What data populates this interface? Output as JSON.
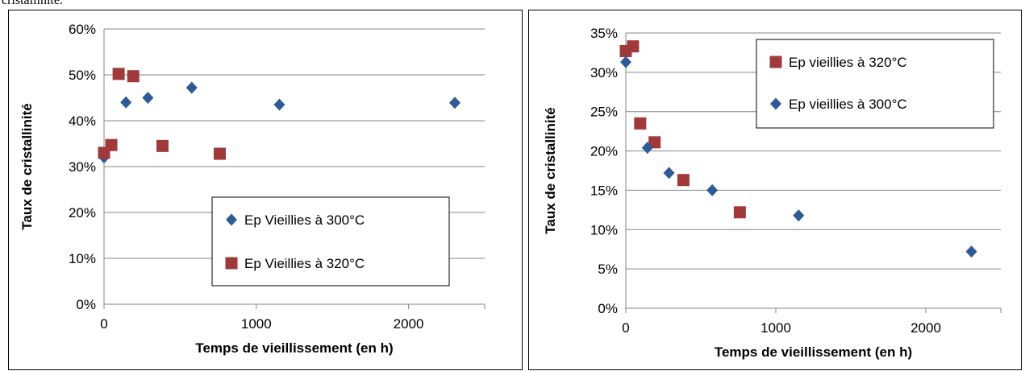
{
  "caption_fragment": "cristallinité.",
  "colors": {
    "blue": "#2E5A95",
    "red": "#A0393A"
  },
  "chart_data": [
    {
      "type": "scatter",
      "xlabel": "Temps de vieillissement (en h)",
      "ylabel": "Taux de cristallinité",
      "xlim": [
        0,
        2500
      ],
      "ylim": [
        0,
        0.6
      ],
      "xticks": [
        0,
        1000,
        2000
      ],
      "yticks": [
        0,
        0.1,
        0.2,
        0.3,
        0.4,
        0.5,
        0.6
      ],
      "xtick_labels": [
        "0",
        "1000",
        "2000"
      ],
      "ytick_labels": [
        "0%",
        "10%",
        "20%",
        "30%",
        "40%",
        "50%",
        "60%"
      ],
      "grid": "horizontal",
      "legend_position": "lower-right",
      "series": [
        {
          "name": "Ep Vieillies à 300°C",
          "marker": "diamond",
          "color": "#2E5A95",
          "x": [
            0,
            144,
            288,
            576,
            1152,
            2304
          ],
          "y": [
            0.32,
            0.44,
            0.45,
            0.472,
            0.435,
            0.439
          ]
        },
        {
          "name": "Ep Vieillies à 320°C",
          "marker": "square",
          "color": "#A0393A",
          "x": [
            0,
            48,
            96,
            192,
            384,
            760
          ],
          "y": [
            0.33,
            0.347,
            0.502,
            0.497,
            0.345,
            0.328
          ]
        }
      ]
    },
    {
      "type": "scatter",
      "xlabel": "Temps de vieillissement (en h)",
      "ylabel": "Taux de cristallinité",
      "xlim": [
        0,
        2500
      ],
      "ylim": [
        0,
        0.35
      ],
      "xticks": [
        0,
        1000,
        2000
      ],
      "yticks": [
        0,
        0.05,
        0.1,
        0.15,
        0.2,
        0.25,
        0.3,
        0.35
      ],
      "xtick_labels": [
        "0",
        "1000",
        "2000"
      ],
      "ytick_labels": [
        "0%",
        "5%",
        "10%",
        "15%",
        "20%",
        "25%",
        "30%",
        "35%"
      ],
      "grid": "horizontal",
      "legend_position": "top-right",
      "series": [
        {
          "name": "Ep vieillies à 320°C",
          "marker": "square",
          "color": "#A0393A",
          "x": [
            0,
            48,
            96,
            192,
            384,
            760
          ],
          "y": [
            0.327,
            0.333,
            0.235,
            0.211,
            0.163,
            0.122
          ]
        },
        {
          "name": "Ep vieillies à 300°C",
          "marker": "diamond",
          "color": "#2E5A95",
          "x": [
            0,
            144,
            288,
            576,
            1152,
            2304
          ],
          "y": [
            0.313,
            0.204,
            0.172,
            0.15,
            0.118,
            0.072
          ]
        }
      ]
    }
  ]
}
